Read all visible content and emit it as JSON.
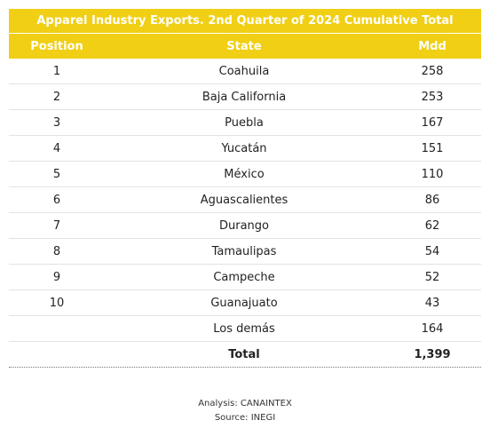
{
  "colors": {
    "header_bg": "#f0cf14",
    "header_text": "#ffffff"
  },
  "table": {
    "title": "Apparel Industry Exports. 2nd Quarter of 2024 Cumulative Total",
    "columns": [
      "Position",
      "State",
      "Mdd"
    ],
    "rows": [
      {
        "position": "1",
        "state": "Coahuila",
        "mdd": "258"
      },
      {
        "position": "2",
        "state": "Baja California",
        "mdd": "253"
      },
      {
        "position": "3",
        "state": "Puebla",
        "mdd": "167"
      },
      {
        "position": "4",
        "state": "Yucatán",
        "mdd": "151"
      },
      {
        "position": "5",
        "state": "México",
        "mdd": "110"
      },
      {
        "position": "6",
        "state": "Aguascalientes",
        "mdd": "86"
      },
      {
        "position": "7",
        "state": "Durango",
        "mdd": "62"
      },
      {
        "position": "8",
        "state": "Tamaulipas",
        "mdd": "54"
      },
      {
        "position": "9",
        "state": "Campeche",
        "mdd": "52"
      },
      {
        "position": "10",
        "state": "Guanajuato",
        "mdd": "43"
      },
      {
        "position": "",
        "state": "Los demás",
        "mdd": "164"
      }
    ],
    "total": {
      "label": "Total",
      "value": "1,399"
    }
  },
  "footer": {
    "analysis": "Analysis: CANAINTEX",
    "source": "Source: INEGI"
  },
  "chart_data": {
    "type": "table",
    "title": "Apparel Industry Exports. 2nd Quarter of 2024 Cumulative Total",
    "columns": [
      "Position",
      "State",
      "Mdd"
    ],
    "categories": [
      "Coahuila",
      "Baja California",
      "Puebla",
      "Yucatán",
      "México",
      "Aguascalientes",
      "Durango",
      "Tamaulipas",
      "Campeche",
      "Guanajuato",
      "Los demás"
    ],
    "values": [
      258,
      253,
      167,
      151,
      110,
      86,
      62,
      54,
      52,
      43,
      164
    ],
    "total": 1399
  }
}
